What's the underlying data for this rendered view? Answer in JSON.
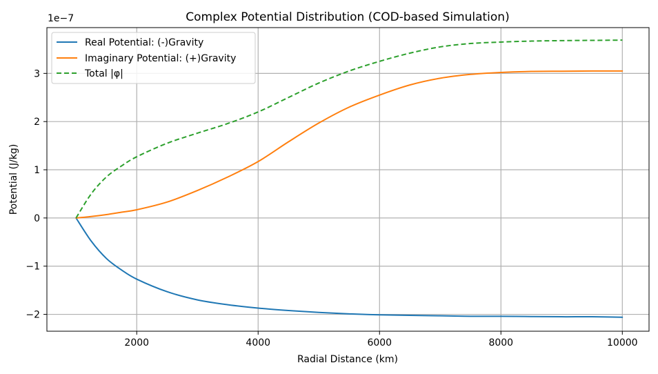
{
  "chart_data": {
    "type": "line",
    "title": "Complex Potential Distribution (COD-based Simulation)",
    "xlabel": "Radial Distance (km)",
    "ylabel": "Potential (J/kg)",
    "y_offset_label": "1e−7",
    "xlim": [
      520,
      10440
    ],
    "ylim": [
      -2.35,
      3.95
    ],
    "x_ticks": [
      2000,
      4000,
      6000,
      8000,
      10000
    ],
    "x_tick_labels": [
      "2000",
      "4000",
      "6000",
      "8000",
      "10000"
    ],
    "y_ticks": [
      -2,
      -1,
      0,
      1,
      2,
      3
    ],
    "y_tick_labels": [
      "−2",
      "−1",
      "0",
      "1",
      "2",
      "3"
    ],
    "grid": true,
    "legend_position": "top-left",
    "y_scale_factor": 1e-07,
    "series": [
      {
        "name": "Real Potential: (-)Gravity",
        "color": "#1f77b4",
        "dash": "solid",
        "x": [
          1000,
          1250,
          1500,
          1750,
          2000,
          2500,
          3000,
          3500,
          4000,
          4500,
          5000,
          5500,
          6000,
          6500,
          7000,
          7500,
          8000,
          8500,
          9000,
          9500,
          10000
        ],
        "y": [
          0.0,
          -0.48,
          -0.84,
          -1.08,
          -1.27,
          -1.53,
          -1.7,
          -1.8,
          -1.87,
          -1.92,
          -1.96,
          -1.99,
          -2.01,
          -2.02,
          -2.03,
          -2.04,
          -2.04,
          -2.045,
          -2.05,
          -2.05,
          -2.06
        ]
      },
      {
        "name": "Imaginary Potential: (+)Gravity",
        "color": "#ff7f0e",
        "dash": "solid",
        "x": [
          1000,
          1250,
          1500,
          1750,
          2000,
          2500,
          3000,
          3500,
          4000,
          4500,
          5000,
          5500,
          6000,
          6500,
          7000,
          7500,
          8000,
          8500,
          9000,
          9500,
          10000
        ],
        "y": [
          0.0,
          0.03,
          0.07,
          0.12,
          0.17,
          0.33,
          0.57,
          0.85,
          1.17,
          1.58,
          1.97,
          2.3,
          2.55,
          2.76,
          2.9,
          2.98,
          3.02,
          3.04,
          3.045,
          3.05,
          3.05
        ]
      },
      {
        "name": "Total |φ|",
        "color": "#2ca02c",
        "dash": "dashed",
        "x": [
          1000,
          1250,
          1500,
          1750,
          2000,
          2500,
          3000,
          3500,
          4000,
          4500,
          5000,
          5500,
          6000,
          6500,
          7000,
          7500,
          8000,
          8500,
          9000,
          9500,
          10000
        ],
        "y": [
          0.0,
          0.5,
          0.85,
          1.08,
          1.27,
          1.55,
          1.76,
          1.96,
          2.2,
          2.5,
          2.8,
          3.05,
          3.25,
          3.42,
          3.55,
          3.62,
          3.65,
          3.67,
          3.68,
          3.685,
          3.69
        ]
      }
    ]
  }
}
